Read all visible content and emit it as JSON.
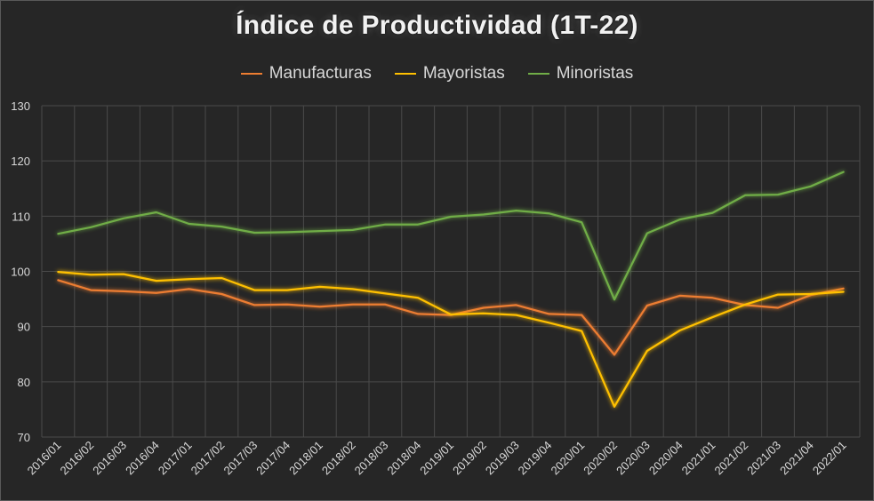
{
  "chart_data": {
    "type": "line",
    "title": "Índice de Productividad (1T-22)",
    "xlabel": "",
    "ylabel": "",
    "ylim": [
      70,
      130
    ],
    "yticks": [
      70,
      80,
      90,
      100,
      110,
      120,
      130
    ],
    "grid": true,
    "legend_position": "top",
    "categories": [
      "2016/01",
      "2016/02",
      "2016/03",
      "2016/04",
      "2017/01",
      "2017/02",
      "2017/03",
      "2017/04",
      "2018/01",
      "2018/02",
      "2018/03",
      "2018/04",
      "2019/01",
      "2019/02",
      "2019/03",
      "2019/04",
      "2020/01",
      "2020/02",
      "2020/03",
      "2020/04",
      "2021/01",
      "2021/02",
      "2021/03",
      "2021/04",
      "2022/01"
    ],
    "x_tick_labels": [
      "2016/01",
      "2016/02",
      "2016/03",
      "2016/04",
      "2017/01",
      "2017/02",
      "2017/03",
      "2017/04",
      "2018/01",
      "2018/02",
      "2018/03",
      "2018/04",
      "2019/01",
      "2019/02",
      "2019/03",
      "2019/04",
      "2020/01",
      "2020/02",
      "2020/03",
      "2020/04",
      "2021/01",
      "2021/02",
      "2021/03",
      "2021/04",
      "2022/01"
    ],
    "series": [
      {
        "name": "Manufacturas",
        "color": "#ed7d31",
        "values": [
          98.4,
          96.6,
          96.4,
          96.1,
          96.8,
          95.9,
          93.9,
          94.0,
          93.6,
          94.0,
          94.0,
          92.3,
          92.1,
          93.4,
          93.9,
          92.3,
          92.1,
          84.9,
          93.8,
          95.6,
          95.2,
          93.9,
          93.4,
          95.7,
          96.9
        ]
      },
      {
        "name": "Mayoristas",
        "color": "#ffc000",
        "values": [
          99.9,
          99.4,
          99.5,
          98.3,
          98.6,
          98.8,
          96.6,
          96.6,
          97.2,
          96.8,
          96.0,
          95.2,
          92.2,
          92.4,
          92.1,
          90.7,
          89.2,
          75.5,
          85.6,
          89.3,
          91.7,
          94.0,
          95.8,
          95.9,
          96.3
        ]
      },
      {
        "name": "Minoristas",
        "color": "#70ad47",
        "values": [
          106.8,
          108.0,
          109.6,
          110.7,
          108.6,
          108.1,
          107.0,
          107.1,
          107.3,
          107.5,
          108.5,
          108.5,
          109.9,
          110.3,
          111.0,
          110.5,
          108.9,
          94.9,
          106.9,
          109.4,
          110.6,
          113.8,
          113.9,
          115.4,
          118.0
        ]
      }
    ]
  }
}
